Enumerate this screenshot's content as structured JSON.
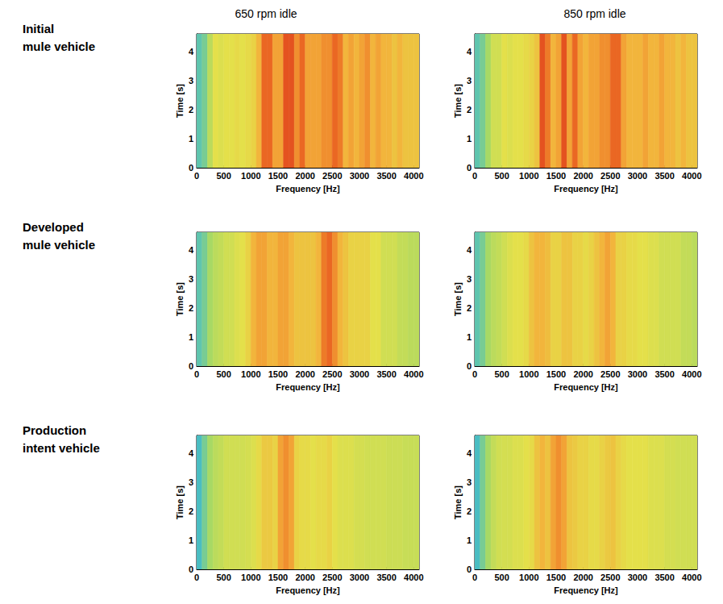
{
  "column_titles": [
    "650 rpm idle",
    "850 rpm idle"
  ],
  "row_labels": [
    "Initial mule vehicle",
    "Developed mule vehicle",
    "Production intent vehicle"
  ],
  "chart_data": [
    {
      "type": "heatmap",
      "x_label": "Frequency [Hz]",
      "y_label": "Time [s]",
      "xlim": [
        0,
        4100
      ],
      "ylim": [
        0,
        4.6
      ],
      "xticks": [
        0,
        500,
        1000,
        1500,
        2000,
        2500,
        3000,
        3500,
        4000
      ],
      "yticks": [
        0,
        1,
        2,
        3,
        4
      ],
      "zlim": [
        0,
        10
      ],
      "time_bins": [
        0,
        4.6
      ],
      "frequency_bins": [
        0,
        100,
        200,
        300,
        400,
        500,
        600,
        700,
        800,
        900,
        1000,
        1100,
        1200,
        1300,
        1400,
        1500,
        1600,
        1700,
        1800,
        1900,
        2000,
        2100,
        2200,
        2300,
        2400,
        2500,
        2600,
        2700,
        2800,
        2900,
        3000,
        3100,
        3200,
        3300,
        3400,
        3500,
        3600,
        3700,
        3800,
        3900,
        4000,
        4100
      ],
      "cells": [
        [
          2,
          2.5,
          4,
          5,
          4.8,
          5,
          5,
          5.2,
          5,
          5.2,
          5.5,
          6.5,
          8.5,
          8.5,
          7,
          7,
          9,
          9,
          7.5,
          8.5,
          7,
          7,
          7,
          7.5,
          7.5,
          8.5,
          8,
          6.5,
          7,
          6.5,
          7,
          7.5,
          6.5,
          7,
          6.5,
          6.5,
          6,
          6.5,
          6,
          6,
          6
        ]
      ]
    },
    {
      "type": "heatmap",
      "x_label": "Frequency [Hz]",
      "y_label": "Time [s]",
      "xlim": [
        0,
        4100
      ],
      "ylim": [
        0,
        4.6
      ],
      "xticks": [
        0,
        500,
        1000,
        1500,
        2000,
        2500,
        3000,
        3500,
        4000
      ],
      "yticks": [
        0,
        1,
        2,
        3,
        4
      ],
      "zlim": [
        0,
        10
      ],
      "time_bins": [
        0,
        4.6
      ],
      "frequency_bins": [
        0,
        100,
        200,
        300,
        400,
        500,
        600,
        700,
        800,
        900,
        1000,
        1100,
        1200,
        1300,
        1400,
        1500,
        1600,
        1700,
        1800,
        1900,
        2000,
        2100,
        2200,
        2300,
        2400,
        2500,
        2600,
        2700,
        2800,
        2900,
        3000,
        3100,
        3200,
        3300,
        3400,
        3500,
        3600,
        3700,
        3800,
        3900,
        4000,
        4100
      ],
      "cells": [
        [
          2,
          2.5,
          3.5,
          4.5,
          4.5,
          5,
          4.8,
          5,
          5,
          5.2,
          5.5,
          6,
          9,
          8,
          6.5,
          7,
          9,
          7,
          8.5,
          7,
          6.5,
          7,
          7,
          7.5,
          7.5,
          8.5,
          8.5,
          7,
          6.5,
          6.5,
          6.5,
          7,
          6.5,
          6.5,
          7,
          6.5,
          6.5,
          6,
          6.5,
          6,
          6
        ]
      ]
    },
    {
      "type": "heatmap",
      "x_label": "Frequency [Hz]",
      "y_label": "Time [s]",
      "xlim": [
        0,
        4100
      ],
      "ylim": [
        0,
        4.6
      ],
      "xticks": [
        0,
        500,
        1000,
        1500,
        2000,
        2500,
        3000,
        3500,
        4000
      ],
      "yticks": [
        0,
        1,
        2,
        3,
        4
      ],
      "zlim": [
        0,
        10
      ],
      "time_bins": [
        0,
        4.6
      ],
      "frequency_bins": [
        0,
        100,
        200,
        300,
        400,
        500,
        600,
        700,
        800,
        900,
        1000,
        1100,
        1200,
        1300,
        1400,
        1500,
        1600,
        1700,
        1800,
        1900,
        2000,
        2100,
        2200,
        2300,
        2400,
        2500,
        2600,
        2700,
        2800,
        2900,
        3000,
        3100,
        3200,
        3300,
        3400,
        3500,
        3600,
        3700,
        3800,
        3900,
        4000,
        4100
      ],
      "cells": [
        [
          2,
          2.5,
          3.5,
          4,
          4.2,
          4.5,
          4.5,
          4.8,
          5,
          5.5,
          6.5,
          7,
          7,
          6.5,
          6.5,
          7,
          7,
          6.5,
          6,
          6,
          6,
          6,
          6.5,
          8,
          8.5,
          7.5,
          6.5,
          6,
          5.5,
          5.5,
          5.5,
          5.5,
          5,
          5,
          4.5,
          4.5,
          4.5,
          4.2,
          4.2,
          4,
          4
        ]
      ]
    },
    {
      "type": "heatmap",
      "x_label": "Frequency [Hz]",
      "y_label": "Time [s]",
      "xlim": [
        0,
        4100
      ],
      "ylim": [
        0,
        4.6
      ],
      "xticks": [
        0,
        500,
        1000,
        1500,
        2000,
        2500,
        3000,
        3500,
        4000
      ],
      "yticks": [
        0,
        1,
        2,
        3,
        4
      ],
      "zlim": [
        0,
        10
      ],
      "time_bins": [
        0,
        4.6
      ],
      "frequency_bins": [
        0,
        100,
        200,
        300,
        400,
        500,
        600,
        700,
        800,
        900,
        1000,
        1100,
        1200,
        1300,
        1400,
        1500,
        1600,
        1700,
        1800,
        1900,
        2000,
        2100,
        2200,
        2300,
        2400,
        2500,
        2600,
        2700,
        2800,
        2900,
        3000,
        3100,
        3200,
        3300,
        3400,
        3500,
        3600,
        3700,
        3800,
        3900,
        4000,
        4100
      ],
      "cells": [
        [
          2,
          2.5,
          3.5,
          4,
          4.2,
          4.5,
          4.8,
          5,
          5,
          5.2,
          6,
          6.5,
          6.5,
          6.2,
          5.5,
          5.5,
          6,
          6,
          5.5,
          5.5,
          5.2,
          5.5,
          6,
          6.5,
          7,
          6.5,
          5.5,
          5.5,
          5.2,
          5.2,
          5,
          5,
          4.8,
          4.8,
          4.5,
          4.5,
          4.5,
          4.5,
          4.2,
          4.2,
          4
        ]
      ]
    },
    {
      "type": "heatmap",
      "x_label": "Frequency [Hz]",
      "y_label": "Time [s]",
      "xlim": [
        0,
        4100
      ],
      "ylim": [
        0,
        4.6
      ],
      "xticks": [
        0,
        500,
        1000,
        1500,
        2000,
        2500,
        3000,
        3500,
        4000
      ],
      "yticks": [
        0,
        1,
        2,
        3,
        4
      ],
      "zlim": [
        0,
        10
      ],
      "time_bins": [
        0,
        4.6
      ],
      "frequency_bins": [
        0,
        100,
        200,
        300,
        400,
        500,
        600,
        700,
        800,
        900,
        1000,
        1100,
        1200,
        1300,
        1400,
        1500,
        1600,
        1700,
        1800,
        1900,
        2000,
        2100,
        2200,
        2300,
        2400,
        2500,
        2600,
        2700,
        2800,
        2900,
        3000,
        3100,
        3200,
        3300,
        3400,
        3500,
        3600,
        3700,
        3800,
        3900,
        4000,
        4100
      ],
      "cells": [
        [
          1.5,
          2.5,
          3.5,
          4,
          4.2,
          4.5,
          4.5,
          4.5,
          4.5,
          4.6,
          4.8,
          5.2,
          5.8,
          5.8,
          5.5,
          7,
          7.5,
          7,
          5.5,
          5.2,
          5.2,
          5,
          5.2,
          5.2,
          5.5,
          5,
          4.8,
          4.8,
          4.8,
          4.6,
          4.6,
          4.5,
          4.5,
          4.5,
          4.5,
          4.4,
          4.4,
          4.4,
          4.3,
          4.3,
          4.3
        ]
      ]
    },
    {
      "type": "heatmap",
      "x_label": "Frequency [Hz]",
      "y_label": "Time [s]",
      "xlim": [
        0,
        4100
      ],
      "ylim": [
        0,
        4.6
      ],
      "xticks": [
        0,
        500,
        1000,
        1500,
        2000,
        2500,
        3000,
        3500,
        4000
      ],
      "yticks": [
        0,
        1,
        2,
        3,
        4
      ],
      "zlim": [
        0,
        10
      ],
      "time_bins": [
        0,
        4.6
      ],
      "frequency_bins": [
        0,
        100,
        200,
        300,
        400,
        500,
        600,
        700,
        800,
        900,
        1000,
        1100,
        1200,
        1300,
        1400,
        1500,
        1600,
        1700,
        1800,
        1900,
        2000,
        2100,
        2200,
        2300,
        2400,
        2500,
        2600,
        2700,
        2800,
        2900,
        3000,
        3100,
        3200,
        3300,
        3400,
        3500,
        3600,
        3700,
        3800,
        3900,
        4000,
        4100
      ],
      "cells": [
        [
          1.5,
          2.5,
          3.5,
          4.2,
          4.5,
          4.6,
          4.6,
          4.8,
          4.8,
          5,
          5.2,
          6,
          6.5,
          6,
          7,
          7.5,
          7,
          6,
          5.8,
          5.5,
          5.5,
          5.2,
          5.2,
          5.5,
          5.8,
          6,
          5.5,
          5.2,
          5,
          5,
          5,
          5,
          4.8,
          4.8,
          4.8,
          4.6,
          4.6,
          4.5,
          4.5,
          4.5,
          4.5
        ]
      ]
    }
  ]
}
